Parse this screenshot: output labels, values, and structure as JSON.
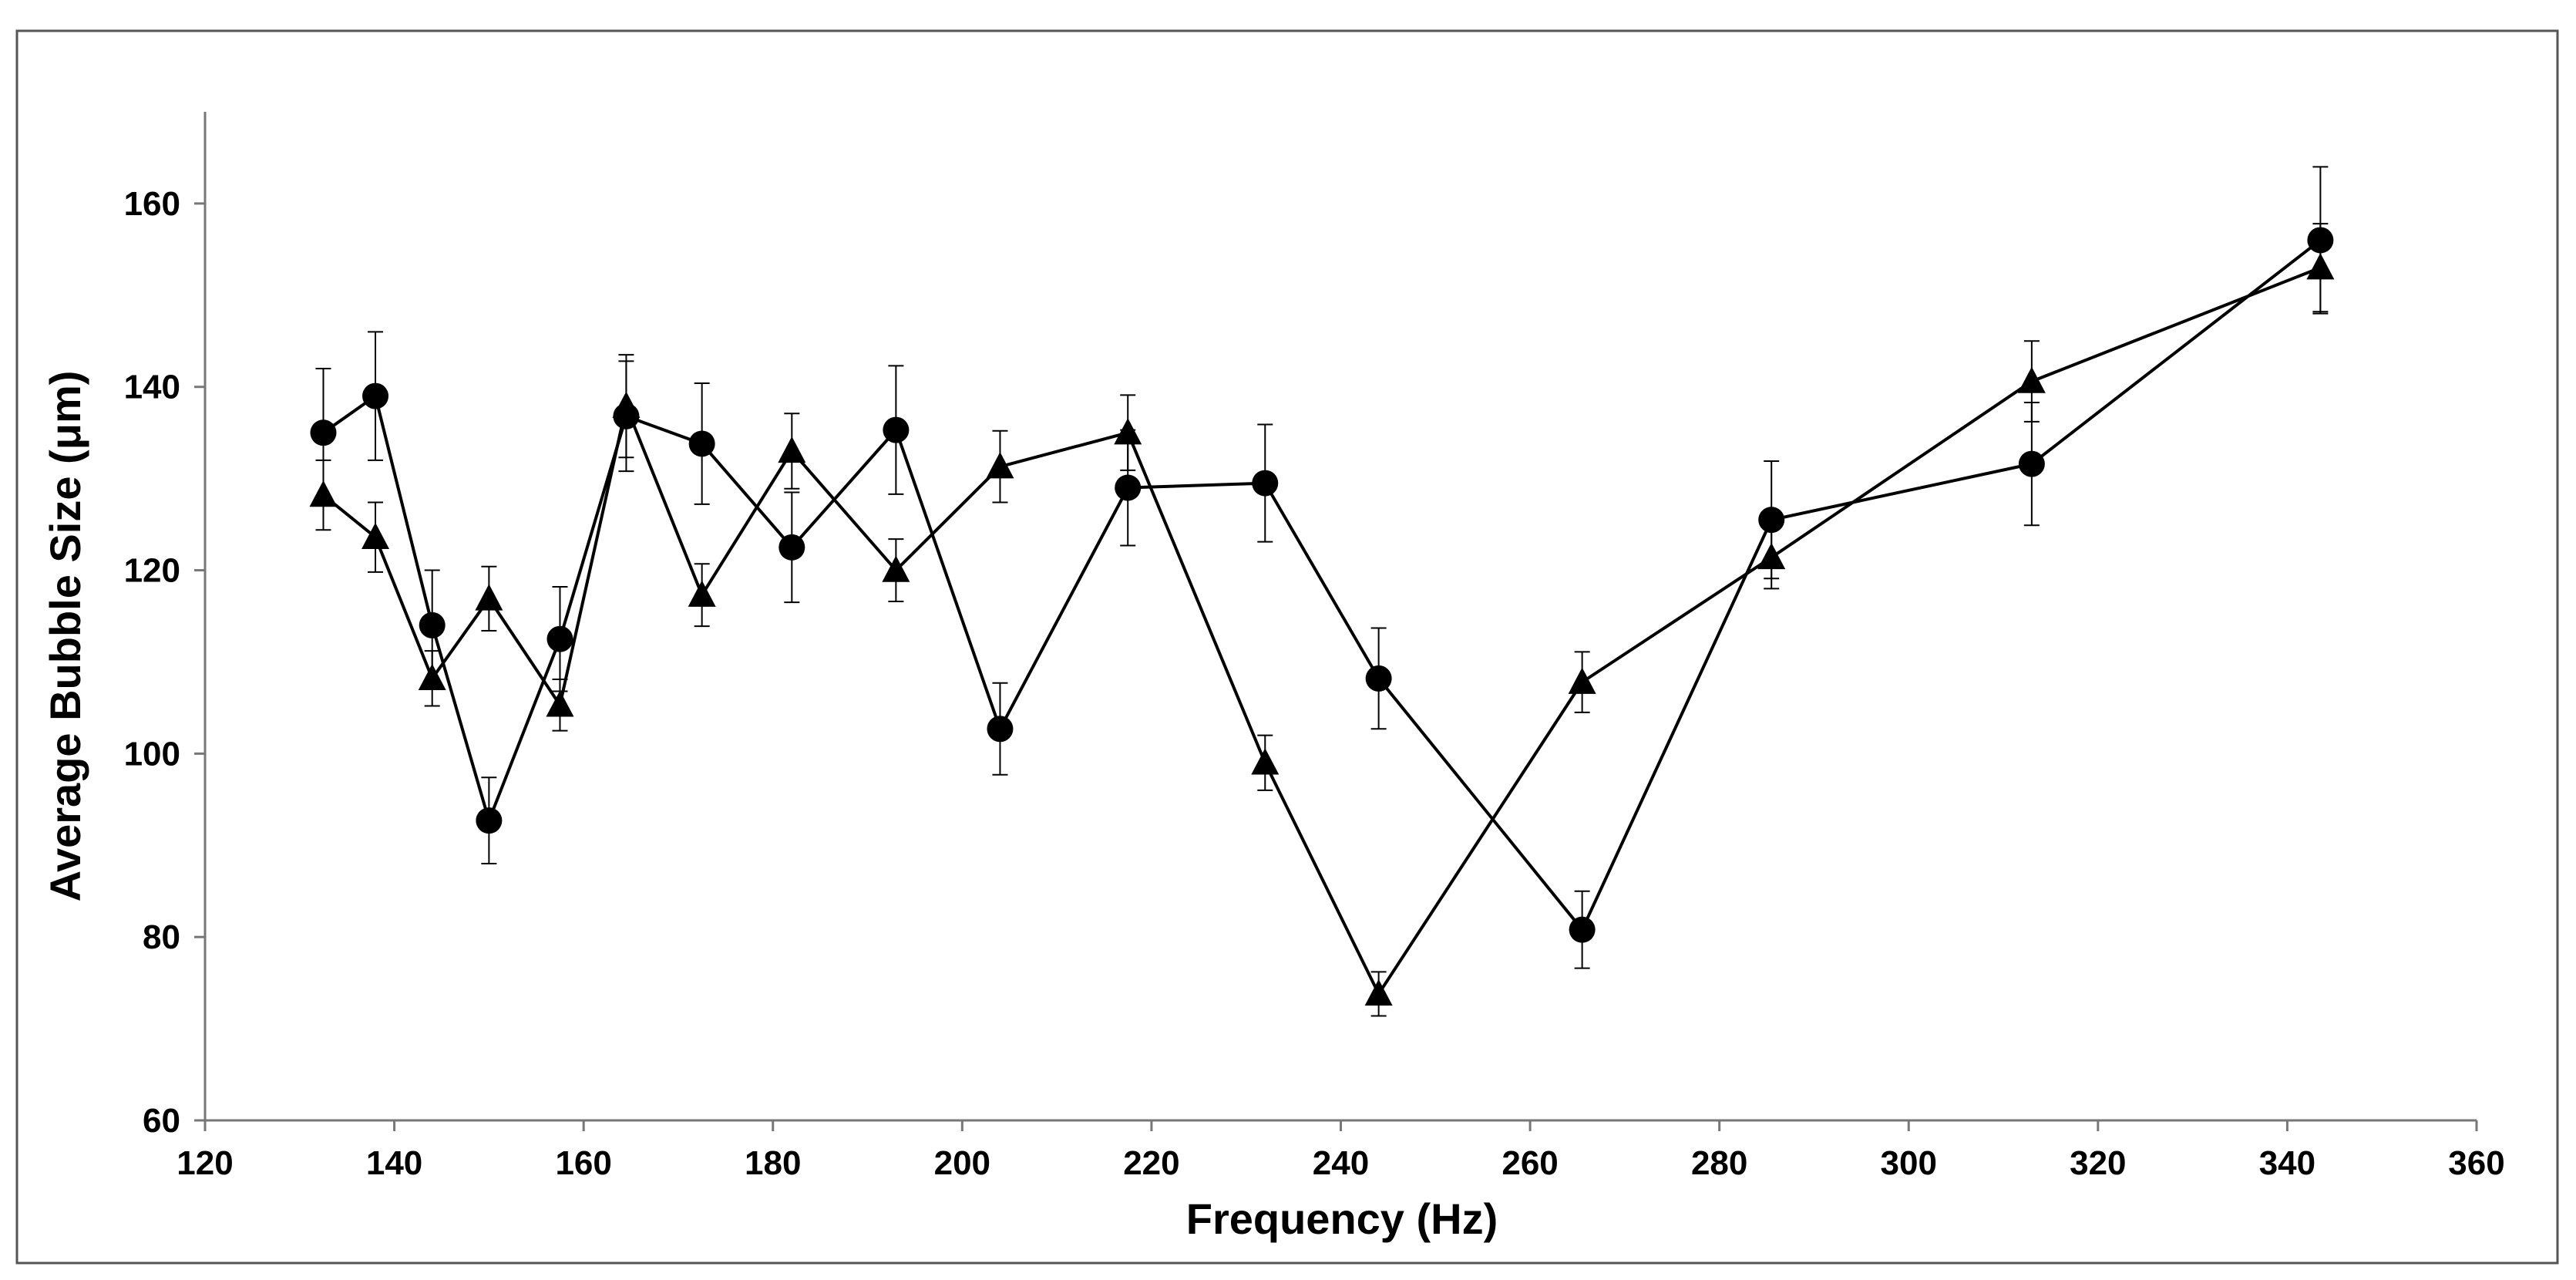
{
  "chart_data": {
    "type": "line",
    "title": "",
    "xlabel": "Frequency (Hz)",
    "ylabel": "Average Bubble Size (μm)",
    "xlim": [
      120,
      360
    ],
    "ylim": [
      60,
      170
    ],
    "xticks": [
      120,
      140,
      160,
      180,
      200,
      220,
      240,
      260,
      280,
      300,
      320,
      340,
      360
    ],
    "yticks": [
      60,
      80,
      100,
      120,
      140,
      160
    ],
    "grid": false,
    "legend": "none",
    "series": [
      {
        "name": "circles",
        "marker": "circle",
        "x": [
          132.5,
          138,
          144,
          150,
          157.5,
          164.5,
          172.5,
          182,
          193,
          204,
          217.5,
          232,
          244,
          265.5,
          285.5,
          313,
          343.5
        ],
        "y": [
          135,
          139,
          114,
          92.7,
          112.5,
          136.8,
          133.8,
          122.5,
          135.3,
          102.7,
          129,
          129.5,
          108.2,
          80.8,
          125.5,
          131.6,
          156
        ],
        "yerr": [
          7,
          7,
          6,
          4.7,
          5.7,
          6,
          6.6,
          6,
          7,
          5,
          6.3,
          6.4,
          5.5,
          4.2,
          6.4,
          6.7,
          8
        ]
      },
      {
        "name": "triangles",
        "marker": "triangle",
        "x": [
          132.5,
          138,
          144,
          150,
          157.5,
          164.5,
          172.5,
          182,
          193,
          204,
          217.5,
          232,
          244,
          265.5,
          285.5,
          313,
          343.5
        ],
        "y": [
          128.2,
          123.6,
          108.2,
          116.9,
          105.3,
          137.9,
          117.3,
          133,
          120,
          131.3,
          135,
          99,
          73.8,
          107.8,
          121.4,
          140.6,
          153
        ],
        "yerr": [
          3.8,
          3.8,
          3,
          3.5,
          2.8,
          5.6,
          3.4,
          4.1,
          3.4,
          3.9,
          4.1,
          3,
          2.4,
          3.3,
          3.4,
          4.4,
          4.8
        ]
      }
    ]
  }
}
